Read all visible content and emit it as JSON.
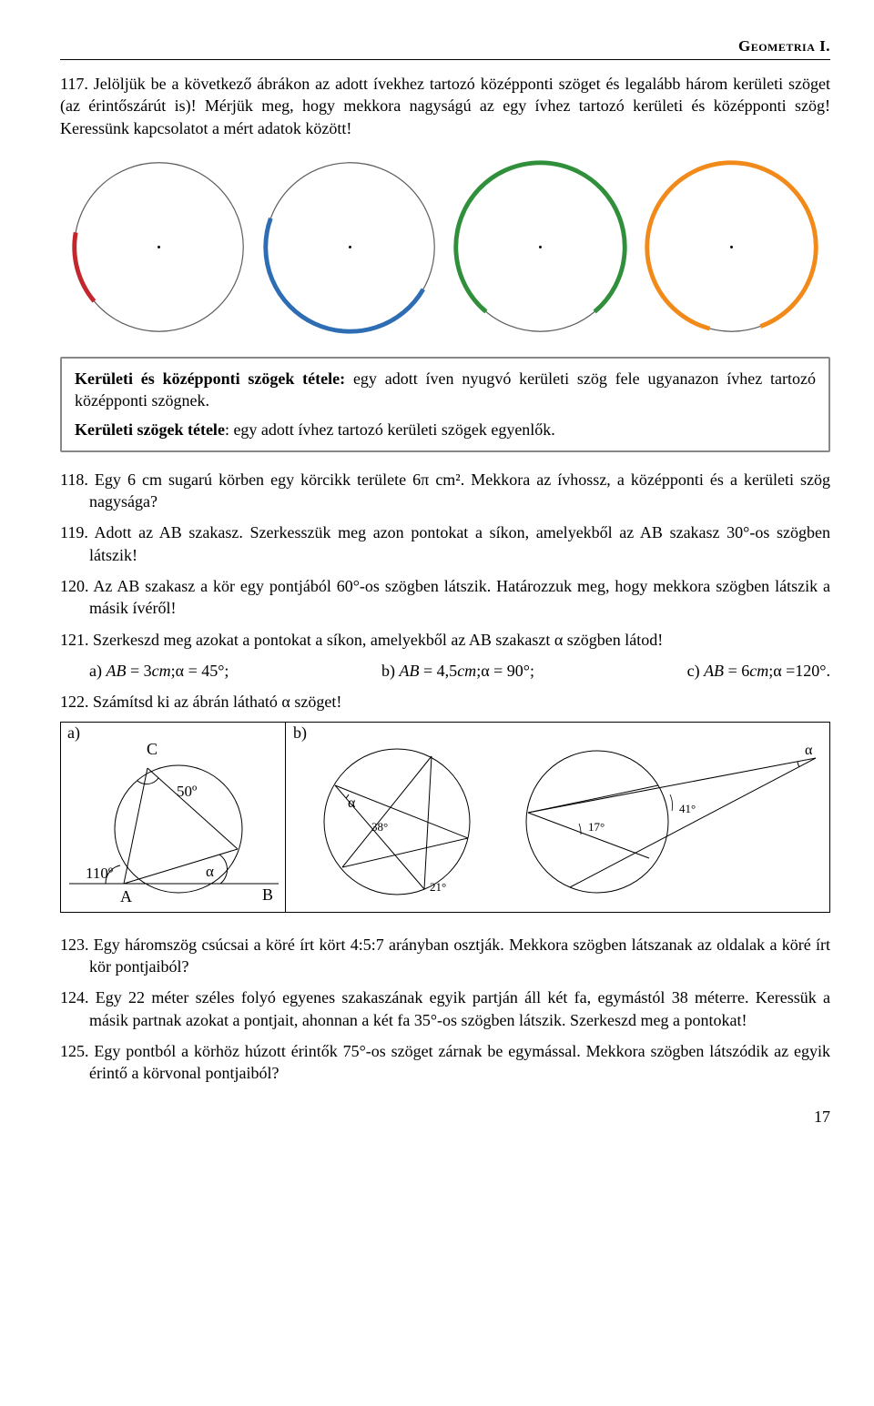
{
  "running_head": "Geometria I.",
  "p117": {
    "num": "117.",
    "text1": "Jelöljük be a következő ábrákon az adott ívekhez tartozó középponti szöget és legalább három kerületi szöget (az érintőszárút is)! Mérjük meg, hogy mekkora nagyságú az egy ívhez tartozó kerületi és középponti szög! Keressünk kapcsolatot a mért adatok között!"
  },
  "circles": {
    "stroke_width": 3,
    "thin_stroke": "#5b5b5b",
    "thin_width": 1.2,
    "c1": {
      "arc_color": "#c1272d",
      "arc_start_deg": 200,
      "arc_end_deg": 250
    },
    "c2": {
      "arc_color": "#2e6db4",
      "arc_start_deg": 140,
      "arc_end_deg": 340
    },
    "c3": {
      "arc_color": "#2f8f3a",
      "arc_start_deg": 120,
      "arc_end_deg": 405
    },
    "c4": {
      "arc_color": "#f28a1a",
      "arc_start_deg": 95,
      "arc_end_deg": 430
    }
  },
  "theorem": {
    "line1a": "Kerületi és középponti szögek tétele:",
    "line1b": " egy adott íven nyugvó kerületi szög fele ugyanazon ívhez tartozó középponti szögnek.",
    "line2a": "Kerületi szögek tétele",
    "line2b": ": egy adott ívhez tartozó kerületi szögek egyenlők."
  },
  "p118": {
    "num": "118.",
    "text": "Egy 6 cm sugarú körben egy körcikk területe 6π cm². Mekkora az ívhossz, a középponti és a kerületi szög nagysága?"
  },
  "p119": {
    "num": "119.",
    "text": "Adott az AB szakasz. Szerkesszük meg azon pontokat a síkon, amelyekből az AB szakasz 30°-os szögben látszik!"
  },
  "p120": {
    "num": "120.",
    "text": "Az AB szakasz a kör egy pontjából 60°-os szögben látszik. Határozzuk meg, hogy mekkora szögben látszik a másik ívéről!"
  },
  "p121": {
    "num": "121.",
    "text": "Szerkeszd meg azokat a pontokat a síkon, amelyekből az AB szakaszt α szögben látod!",
    "opts": {
      "a": "a) AB = 3cm; α = 45°;",
      "b": "b) AB = 4,5cm; α = 90°;",
      "c": "c) AB = 6cm; α =120°."
    }
  },
  "p122": {
    "num": "122.",
    "text": "Számítsd ki az ábrán látható α szöget!"
  },
  "diagram122": {
    "labels": {
      "a": "a)",
      "b": "b)",
      "A": "A",
      "B": "B",
      "C": "C",
      "fifty": "50º",
      "one_ten": "110º",
      "alpha": "α",
      "thirty_eight": "38°",
      "twenty_one": "21°",
      "seventeen": "17°",
      "forty_one": "41°"
    }
  },
  "p123": {
    "num": "123.",
    "text": "Egy háromszög csúcsai a köré írt kört 4:5:7 arányban osztják. Mekkora szögben látszanak az oldalak a köré írt kör pontjaiból?"
  },
  "p124": {
    "num": "124.",
    "text": "Egy 22 méter széles folyó egyenes szakaszának egyik partján áll két fa, egymástól 38 méterre. Keressük a másik partnak azokat a pontjait, ahonnan a két fa 35°-os szögben látszik. Szerkeszd meg a pontokat!"
  },
  "p125": {
    "num": "125.",
    "text": "Egy pontból a körhöz húzott érintők 75°-os szöget zárnak be egymással. Mekkora szögben látszódik az egyik érintő a körvonal pontjaiból?"
  },
  "page_number": "17"
}
